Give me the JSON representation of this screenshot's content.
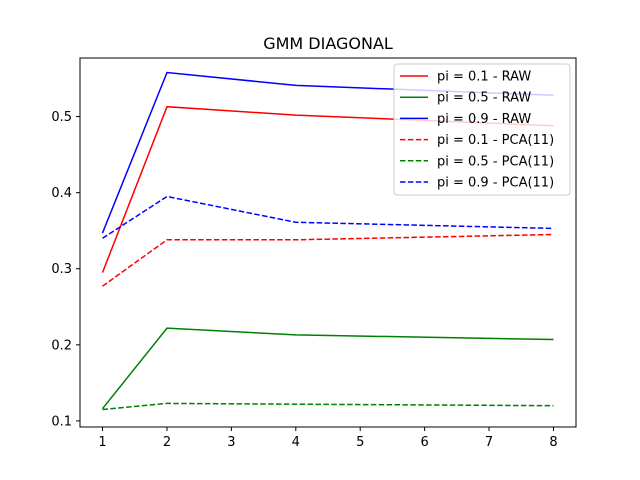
{
  "chart_data": {
    "type": "line",
    "title": "GMM DIAGONAL",
    "xlabel": "",
    "ylabel": "",
    "x": [
      1,
      2,
      4,
      8
    ],
    "xlim": [
      0.65,
      8.35
    ],
    "ylim": [
      0.092,
      0.577
    ],
    "xticks": [
      1,
      2,
      3,
      4,
      5,
      6,
      7,
      8
    ],
    "yticks": [
      0.1,
      0.2,
      0.3,
      0.4,
      0.5
    ],
    "grid": false,
    "legend_position": "top-right",
    "series": [
      {
        "name": "pi = 0.1 - RAW",
        "color": "#ff0000",
        "dash": "solid",
        "values": [
          0.295,
          0.513,
          0.502,
          0.488
        ]
      },
      {
        "name": "pi = 0.5 - RAW",
        "color": "#008000",
        "dash": "solid",
        "values": [
          0.116,
          0.222,
          0.213,
          0.207
        ]
      },
      {
        "name": "pi = 0.9 - RAW",
        "color": "#0000ff",
        "dash": "solid",
        "values": [
          0.347,
          0.558,
          0.541,
          0.528
        ]
      },
      {
        "name": "pi = 0.1 - PCA(11)",
        "color": "#ff0000",
        "dash": "dashed",
        "values": [
          0.277,
          0.338,
          0.338,
          0.345
        ]
      },
      {
        "name": "pi = 0.5 - PCA(11)",
        "color": "#008000",
        "dash": "dashed",
        "values": [
          0.115,
          0.123,
          0.122,
          0.12
        ]
      },
      {
        "name": "pi = 0.9 - PCA(11)",
        "color": "#0000ff",
        "dash": "dashed",
        "values": [
          0.34,
          0.395,
          0.361,
          0.353
        ]
      }
    ]
  }
}
